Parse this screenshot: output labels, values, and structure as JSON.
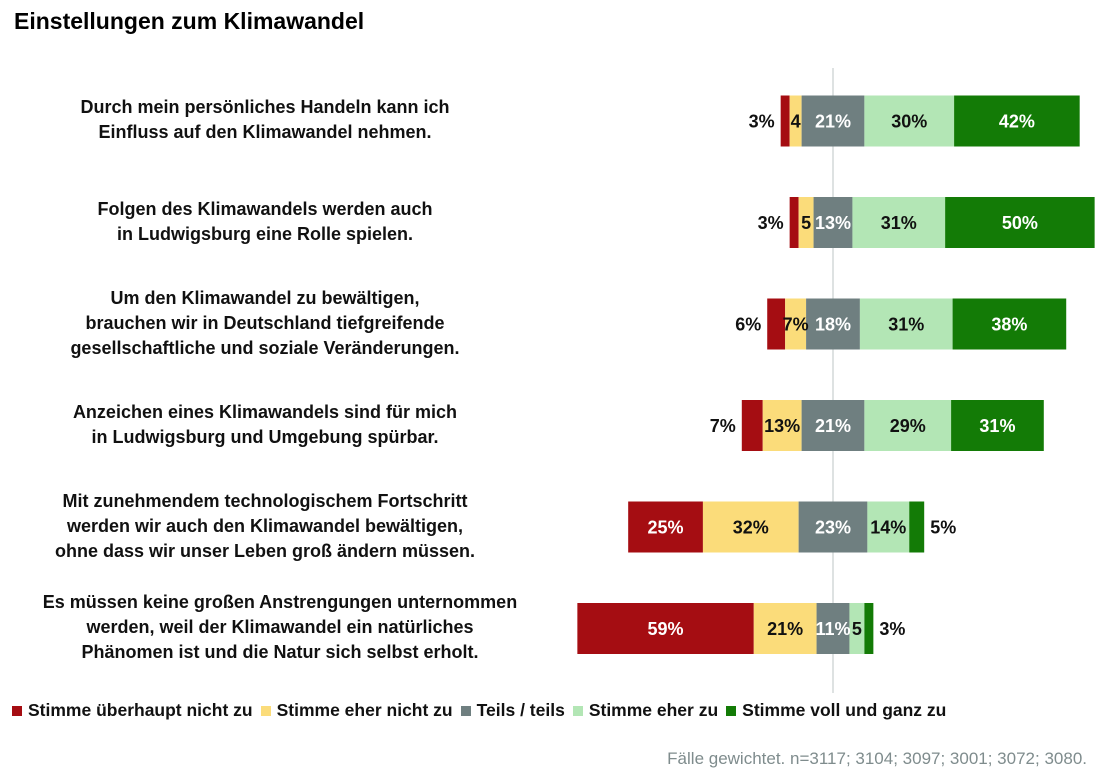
{
  "page": {
    "title": "Einstellungen zum Klimawandel",
    "note": "Fälle gewichtet. n=3117; 3104; 3097; 3001; 3072; 3080."
  },
  "chart_data": {
    "type": "bar",
    "orientation": "horizontal",
    "stacked": "diverging",
    "categories": [
      "Durch mein persönliches Handeln kann ich\nEinfluss auf den Klimawandel nehmen.",
      "Folgen des Klimawandels werden auch\nin Ludwigsburg eine Rolle spielen.",
      "Um den Klimawandel zu bewältigen,\nbrauchen wir in Deutschland tiefgreifende\ngesellschaftliche und soziale Veränderungen.",
      "Anzeichen eines Klimawandels sind für mich\nin Ludwigsburg und Umgebung spürbar.",
      "Mit zunehmendem technologischem Fortschritt\nwerden wir auch den Klimawandel bewältigen,\nohne dass wir unser Leben groß ändern müssen.",
      "Es müssen keine großen Anstrengungen unternommen\nwerden, weil der Klimawandel ein natürliches\nPhänomen ist und die Natur sich selbst erholt."
    ],
    "series": [
      {
        "name": "Stimme überhaupt nicht zu",
        "color": "#a50d12",
        "values": [
          3,
          3,
          6,
          7,
          25,
          59
        ],
        "labels": [
          "3%",
          "3%",
          "6%",
          "7%",
          "25%",
          "59%"
        ]
      },
      {
        "name": "Stimme eher nicht zu",
        "color": "#fbdc7a",
        "values": [
          4,
          5,
          7,
          13,
          32,
          21
        ],
        "labels": [
          "4",
          "5",
          "7%",
          "13%",
          "32%",
          "21%"
        ]
      },
      {
        "name": "Teils / teils",
        "color": "#6f7f80",
        "values": [
          21,
          13,
          18,
          21,
          23,
          11
        ],
        "labels": [
          "21%",
          "13%",
          "18%",
          "21%",
          "23%",
          "11%"
        ]
      },
      {
        "name": "Stimme eher zu",
        "color": "#b3e6b5",
        "values": [
          30,
          31,
          31,
          29,
          14,
          5
        ],
        "labels": [
          "30%",
          "31%",
          "31%",
          "29%",
          "14%",
          "5"
        ]
      },
      {
        "name": "Stimme voll und ganz zu",
        "color": "#137b06",
        "values": [
          42,
          50,
          38,
          31,
          5,
          3
        ],
        "labels": [
          "42%",
          "50%",
          "38%",
          "31%",
          "5%",
          "3%"
        ]
      }
    ],
    "center_line": "middle of Teils / teils",
    "legend_position": "bottom",
    "grid": false
  }
}
